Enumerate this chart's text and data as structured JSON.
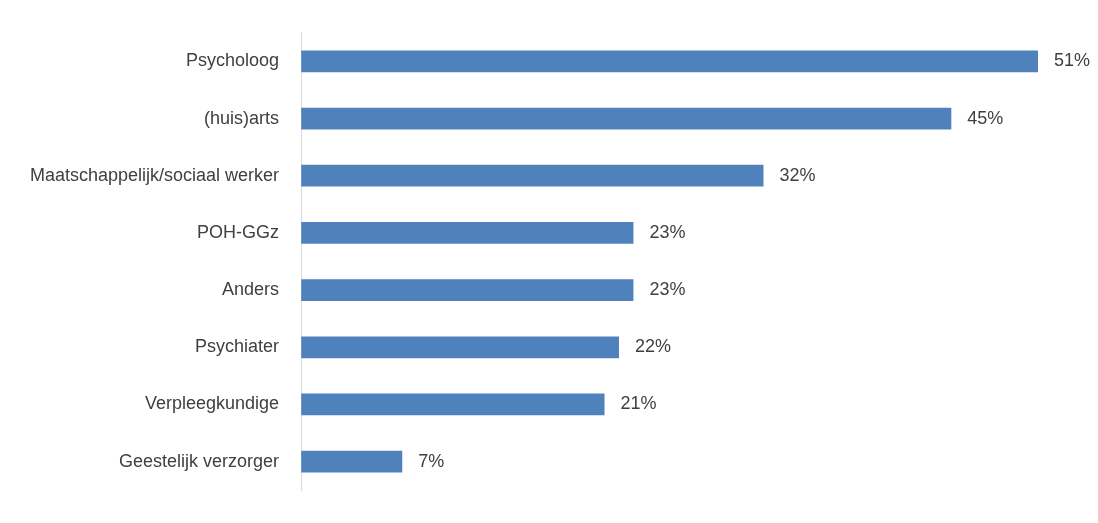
{
  "chart_data": {
    "type": "bar",
    "orientation": "horizontal",
    "categories": [
      "Psycholoog",
      "(huis)arts",
      "Maatschappelijk/sociaal werker",
      "POH-GGz",
      "Anders",
      "Psychiater",
      "Verpleegkundige",
      "Geestelijk verzorger"
    ],
    "values": [
      51,
      45,
      32,
      23,
      23,
      22,
      21,
      7
    ],
    "value_labels": [
      "51%",
      "45%",
      "32%",
      "23%",
      "23%",
      "22%",
      "21%",
      "7%"
    ],
    "color": "#4f81bd",
    "grid": false,
    "legend": false,
    "tick_labels": "y"
  }
}
